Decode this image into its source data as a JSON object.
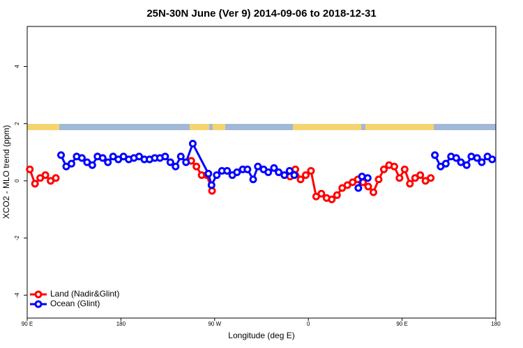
{
  "chart_data": {
    "type": "line",
    "title": "25N-30N June (Ver 9)   2014-09-06 to 2018-12-31",
    "xlabel": "Longitude (deg E)",
    "ylabel": "XCO2 - MLO trend (ppm)",
    "xlim": [
      90,
      540
    ],
    "ylim": [
      -4.8,
      5.4
    ],
    "xticks": [
      {
        "value": 90,
        "label": "90 E"
      },
      180,
      {
        "value": 270,
        "label": "90 W"
      },
      {
        "value": 360,
        "label": "0"
      },
      {
        "value": 450,
        "label": "90 E"
      },
      {
        "value": 540,
        "label": "180"
      }
    ],
    "yticks": [
      -4,
      -2,
      0,
      2,
      4
    ],
    "legend": "bottom-left",
    "series": [
      {
        "name": "Land (Nadir&Glint)",
        "color": "#ff0000",
        "x": [
          92.5,
          97.5,
          102.5,
          107.5,
          112.5,
          117.5,
          null,
          247.5,
          252.5,
          257.5,
          262.5,
          267.5,
          null,
          342.5,
          347.5,
          352.5,
          357.5,
          362.5,
          367.5,
          372.5,
          377.5,
          382.5,
          387.5,
          392.5,
          397.5,
          402.5,
          407.5,
          412.5,
          417.5,
          422.5,
          427.5,
          432.5,
          437.5,
          442.5,
          447.5,
          452.5,
          457.5,
          462.5,
          467.5,
          472.5,
          477.5
        ],
        "values": [
          0.4,
          -0.1,
          0.1,
          0.2,
          0,
          0.1,
          null,
          0.7,
          0.5,
          0.2,
          0.2,
          -0.35,
          null,
          0.15,
          0.4,
          0.05,
          0.2,
          0.35,
          -0.55,
          -0.45,
          -0.6,
          -0.65,
          -0.5,
          -0.25,
          -0.15,
          -0.05,
          0.05,
          -0.05,
          -0.2,
          -0.4,
          0.05,
          0.4,
          0.55,
          0.5,
          0.1,
          0.4,
          -0.1,
          0.1,
          0.2,
          0,
          0.1
        ]
      },
      {
        "name": "Ocean (Glint)",
        "color": "#0000ff",
        "x": [
          122.5,
          127.5,
          132.5,
          137.5,
          142.5,
          147.5,
          152.5,
          157.5,
          162.5,
          167.5,
          172.5,
          177.5,
          182.5,
          187.5,
          192.5,
          197.5,
          202.5,
          207.5,
          212.5,
          217.5,
          222.5,
          227.5,
          232.5,
          237.5,
          242.5,
          249,
          264,
          267,
          272,
          277,
          282,
          287,
          291.5,
          297,
          301.5,
          307,
          311.5,
          317,
          321.5,
          327,
          331.5,
          337,
          342,
          346.5,
          null,
          408,
          411.5,
          417,
          null,
          481.5,
          487,
          492,
          497,
          502,
          506.5,
          512,
          516.5,
          522,
          526.5,
          532,
          536.5
        ],
        "values": [
          0.9,
          0.5,
          0.6,
          0.85,
          0.8,
          0.65,
          0.55,
          0.85,
          0.8,
          0.65,
          0.85,
          0.75,
          0.85,
          0.75,
          0.8,
          0.85,
          0.75,
          0.75,
          0.8,
          0.8,
          0.85,
          0.65,
          0.5,
          0.85,
          0.65,
          1.3,
          0.25,
          -0.15,
          0.2,
          0.35,
          0.35,
          0.2,
          0.3,
          0.4,
          0.4,
          0.05,
          0.5,
          0.4,
          0.3,
          0.45,
          0.3,
          0.2,
          0.35,
          0.2,
          null,
          -0.25,
          0.15,
          0.1,
          null,
          0.9,
          0.5,
          0.6,
          0.85,
          0.8,
          0.65,
          0.55,
          0.85,
          0.8,
          0.65,
          0.85,
          0.75
        ]
      }
    ]
  }
}
